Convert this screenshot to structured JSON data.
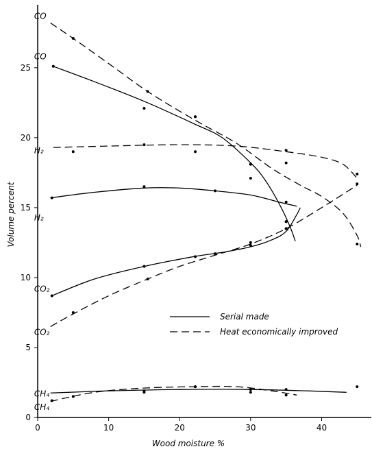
{
  "chart_data": {
    "type": "line",
    "xlabel": "Wood moisture %",
    "ylabel": "Volume percent",
    "xlim": [
      0,
      47
    ],
    "ylim": [
      0,
      29.5
    ],
    "xticks": [
      0,
      10,
      20,
      30,
      40
    ],
    "yticks": [
      0,
      5,
      10,
      15,
      20,
      25
    ],
    "grid": false,
    "legend": {
      "placement": "center-right",
      "entries": [
        {
          "label": "Serial made",
          "style": "solid"
        },
        {
          "label": "Heat economically improved",
          "style": "dashed"
        }
      ]
    },
    "series": [
      {
        "gas": "CO",
        "name": "Serial made",
        "style": "solid",
        "label": "CO",
        "label_at": [
          -0.5,
          25.6
        ],
        "points": [
          [
            2.2,
            25.1
          ],
          [
            15,
            22.1
          ],
          [
            22.2,
            21.5
          ],
          [
            30,
            18.1
          ],
          [
            35,
            14.0
          ]
        ],
        "curve": [
          [
            2.2,
            25.1
          ],
          [
            8,
            24.0
          ],
          [
            15,
            22.6
          ],
          [
            22,
            21.0
          ],
          [
            26,
            20.0
          ],
          [
            30,
            18.2
          ],
          [
            32,
            17.0
          ],
          [
            34,
            15.3
          ],
          [
            35.5,
            13.7
          ],
          [
            36.3,
            12.6
          ]
        ]
      },
      {
        "gas": "CO",
        "name": "Heat economically improved",
        "style": "dashed",
        "label": "CO",
        "label_at": [
          -0.5,
          28.5
        ],
        "points": [
          [
            5,
            27.1
          ],
          [
            15.5,
            23.3
          ],
          [
            22.2,
            21.5
          ],
          [
            30,
            18.1
          ],
          [
            35,
            14.0
          ],
          [
            45,
            12.4
          ]
        ],
        "curve": [
          [
            1.8,
            28.2
          ],
          [
            5,
            27.1
          ],
          [
            10,
            25.3
          ],
          [
            15.5,
            23.3
          ],
          [
            22,
            21.3
          ],
          [
            28,
            19.6
          ],
          [
            33,
            17.8
          ],
          [
            37,
            16.6
          ],
          [
            40,
            15.8
          ],
          [
            43,
            14.6
          ],
          [
            45,
            13.0
          ],
          [
            45.5,
            12.2
          ]
        ]
      },
      {
        "gas": "H2",
        "name": "Heat economically improved",
        "style": "dashed",
        "label": "H₂",
        "label_at": [
          -0.5,
          18.9
        ],
        "points": [
          [
            5,
            19.0
          ],
          [
            15,
            19.5
          ],
          [
            22.2,
            19.0
          ],
          [
            30,
            17.1
          ],
          [
            35,
            19.1
          ],
          [
            35,
            18.2
          ],
          [
            45,
            17.4
          ]
        ],
        "curve": [
          [
            2.2,
            19.3
          ],
          [
            10,
            19.4
          ],
          [
            20,
            19.5
          ],
          [
            28,
            19.4
          ],
          [
            35,
            19.0
          ],
          [
            40,
            18.6
          ],
          [
            43,
            18.1
          ],
          [
            45,
            17.1
          ]
        ]
      },
      {
        "gas": "H2",
        "name": "Serial made",
        "style": "solid",
        "label": "H₂",
        "label_at": [
          -0.5,
          14.1
        ],
        "points": [
          [
            2,
            15.7
          ],
          [
            15,
            16.5
          ],
          [
            25,
            16.2
          ],
          [
            35,
            15.4
          ]
        ],
        "curve": [
          [
            1.8,
            15.7
          ],
          [
            8,
            16.1
          ],
          [
            15,
            16.4
          ],
          [
            20,
            16.4
          ],
          [
            25,
            16.2
          ],
          [
            30,
            15.9
          ],
          [
            34,
            15.4
          ],
          [
            36.5,
            15.1
          ]
        ]
      },
      {
        "gas": "CO2",
        "name": "Serial made",
        "style": "solid",
        "label": "CO₂",
        "label_at": [
          -0.5,
          9.0
        ],
        "points": [
          [
            2,
            8.7
          ],
          [
            15,
            10.8
          ],
          [
            22.2,
            11.5
          ],
          [
            25,
            11.7
          ],
          [
            30,
            12.5
          ],
          [
            35,
            13.5
          ]
        ],
        "curve": [
          [
            2,
            8.7
          ],
          [
            8,
            9.9
          ],
          [
            15,
            10.8
          ],
          [
            22,
            11.5
          ],
          [
            26,
            11.8
          ],
          [
            30,
            12.2
          ],
          [
            33,
            12.7
          ],
          [
            35,
            13.3
          ],
          [
            36.5,
            14.5
          ],
          [
            37,
            15.0
          ]
        ]
      },
      {
        "gas": "CO2",
        "name": "Heat economically improved",
        "style": "dashed",
        "label": "CO₂",
        "label_at": [
          -0.5,
          5.9
        ],
        "points": [
          [
            5,
            7.5
          ],
          [
            15.5,
            9.9
          ],
          [
            25,
            11.7
          ],
          [
            30,
            12.3
          ],
          [
            35,
            13.5
          ],
          [
            45,
            16.7
          ]
        ],
        "curve": [
          [
            1.8,
            6.5
          ],
          [
            5,
            7.4
          ],
          [
            10,
            8.7
          ],
          [
            15.5,
            9.9
          ],
          [
            20,
            10.8
          ],
          [
            25,
            11.6
          ],
          [
            30,
            12.4
          ],
          [
            35,
            13.5
          ],
          [
            40,
            15.0
          ],
          [
            45,
            16.6
          ]
        ]
      },
      {
        "gas": "CH4",
        "name": "Serial made",
        "style": "solid",
        "label": "CH₄",
        "label_at": [
          -0.5,
          1.5
        ],
        "points": [
          [
            5,
            1.5
          ],
          [
            15,
            1.8
          ],
          [
            22.2,
            2.2
          ],
          [
            30,
            1.8
          ],
          [
            35,
            1.6
          ],
          [
            45,
            2.2
          ]
        ],
        "curve": [
          [
            1.8,
            1.75
          ],
          [
            10,
            1.9
          ],
          [
            20,
            2.0
          ],
          [
            30,
            2.0
          ],
          [
            38,
            1.9
          ],
          [
            43.5,
            1.8
          ]
        ]
      },
      {
        "gas": "CH4",
        "name": "Heat economically improved",
        "style": "dashed",
        "label": "CH₄",
        "label_at": [
          -0.5,
          0.55
        ],
        "points": [
          [
            2,
            1.2
          ],
          [
            15,
            1.9
          ],
          [
            22.2,
            2.2
          ],
          [
            30,
            2.0
          ],
          [
            35,
            2.0
          ]
        ],
        "curve": [
          [
            1.8,
            1.15
          ],
          [
            8,
            1.8
          ],
          [
            15,
            2.1
          ],
          [
            22,
            2.2
          ],
          [
            28,
            2.2
          ],
          [
            33,
            1.9
          ],
          [
            36.5,
            1.6
          ]
        ]
      }
    ]
  }
}
